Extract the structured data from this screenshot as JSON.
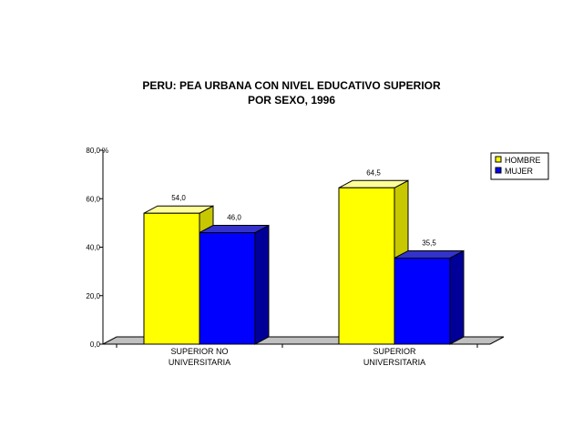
{
  "chart_data": {
    "type": "bar",
    "title": [
      "PERU: PEA URBANA CON NIVEL EDUCATIVO SUPERIOR",
      "POR SEXO, 1996"
    ],
    "ylabel": "%",
    "ylim": [
      0,
      80
    ],
    "yticks": [
      "0,0",
      "20,0",
      "40,0",
      "60,0",
      "80,0"
    ],
    "categories": [
      [
        "SUPERIOR NO",
        "UNIVERSITARIA"
      ],
      [
        "SUPERIOR",
        "UNIVERSITARIA"
      ]
    ],
    "series": [
      {
        "name": "HOMBRE",
        "values": [
          54.0,
          64.5
        ],
        "labels": [
          "54,0",
          "64,5"
        ],
        "color": "#ffff00",
        "side_color": "#c8c800",
        "top_color": "#ffff99"
      },
      {
        "name": "MUJER",
        "values": [
          46.0,
          35.5
        ],
        "labels": [
          "46,0",
          "35,5"
        ],
        "color": "#0000ff",
        "side_color": "#000099",
        "top_color": "#3333cc"
      }
    ],
    "legend_position": "top-right",
    "grid": false
  }
}
